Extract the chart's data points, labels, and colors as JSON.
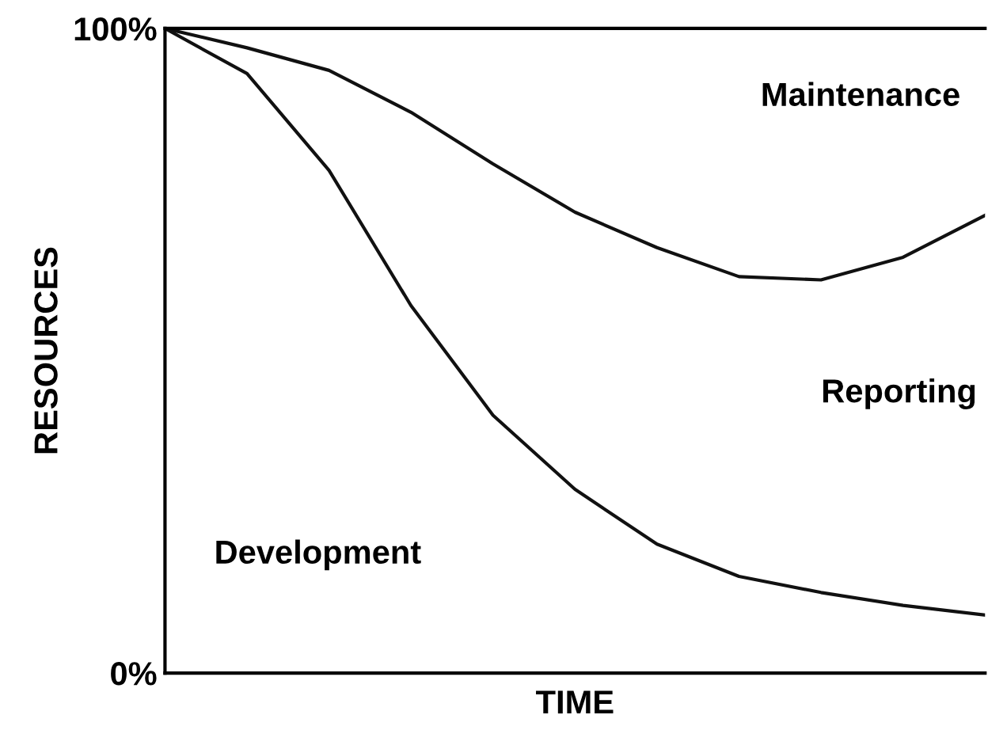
{
  "chart_data": {
    "type": "line",
    "xlabel": "TIME",
    "ylabel": "RESOURCES",
    "categories": [
      null,
      null,
      null,
      null,
      null,
      null,
      null,
      null,
      null,
      null,
      null
    ],
    "series": [
      {
        "color": "#111111",
        "values": [
          100,
          97,
          93.5,
          87,
          79,
          71.5,
          66,
          61.5,
          61,
          64.5,
          71
        ]
      },
      {
        "color": "#111111",
        "values": [
          100,
          93,
          78,
          57,
          40,
          28.5,
          20,
          15,
          12.5,
          10.5,
          9
        ]
      }
    ],
    "ylim": [
      0,
      100
    ],
    "yticks": [
      {
        "value": 0,
        "label": "0%"
      },
      {
        "value": 100,
        "label": "100%"
      }
    ],
    "annotations": [
      "Maintenance",
      "Reporting",
      "Development"
    ],
    "grid": false,
    "legend": false,
    "marker": "none",
    "line_style": "solid"
  }
}
